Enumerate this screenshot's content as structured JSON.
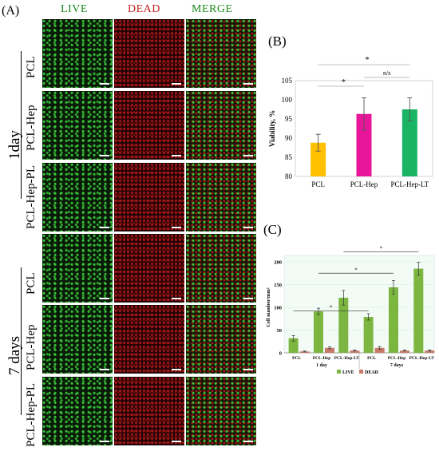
{
  "panel_a": {
    "label": "(A)",
    "columns": [
      "LIVE",
      "DEAD",
      "MERGE"
    ],
    "groups": [
      "1day",
      "7 days"
    ],
    "rows": [
      "PCL",
      "PCL-Hep",
      "PCL-Hep-PL",
      "PCL",
      "PCL-Hep",
      "PCL-Hep-PL"
    ],
    "colors": {
      "live": "#2aa52a",
      "dead": "#c0232a",
      "merge": "#4f8a2a"
    }
  },
  "panel_b": {
    "label": "(B)",
    "sig": [
      "*",
      "*",
      "n/s"
    ]
  },
  "panel_c": {
    "label": "(C)",
    "sig": [
      "*",
      "*",
      "*"
    ],
    "group_labels": [
      "1 day",
      "7 days"
    ]
  },
  "chart_data": [
    {
      "type": "bar",
      "categories": [
        "PCL",
        "PCL-Hep",
        "PCL-Hep-LT"
      ],
      "values": [
        88.8,
        96.3,
        97.5
      ],
      "errors": [
        2.2,
        4.2,
        3.0
      ],
      "colors": [
        "#ffc000",
        "#e8169a",
        "#1ab464"
      ],
      "xlabel": "",
      "ylabel": "Viability, %",
      "ylim": [
        80,
        105
      ],
      "yticks": [
        80,
        85,
        90,
        95,
        100,
        105
      ],
      "grid": false
    },
    {
      "type": "bar",
      "categories": [
        "PCL",
        "PCL-Hep",
        "PCL-Hep-LT",
        "PCL",
        "PCL-Hep",
        "PCL-Hep-LT"
      ],
      "series": [
        {
          "name": "LIVE",
          "values": [
            32,
            91,
            121,
            79,
            144,
            185
          ],
          "errors": [
            6,
            7,
            16,
            7,
            15,
            14
          ],
          "color": "#7cb540"
        },
        {
          "name": "DEAD",
          "values": [
            3,
            11,
            5,
            11,
            5,
            5
          ],
          "errors": [
            1,
            2,
            1,
            3,
            1,
            1
          ],
          "color": "#c87a6a"
        }
      ],
      "xlabel": "",
      "ylabel": "Cell number/mm²",
      "ylim": [
        0,
        200
      ],
      "yticks": [
        0,
        50,
        100,
        150,
        200
      ],
      "legend": "bottom",
      "grid": false
    }
  ]
}
